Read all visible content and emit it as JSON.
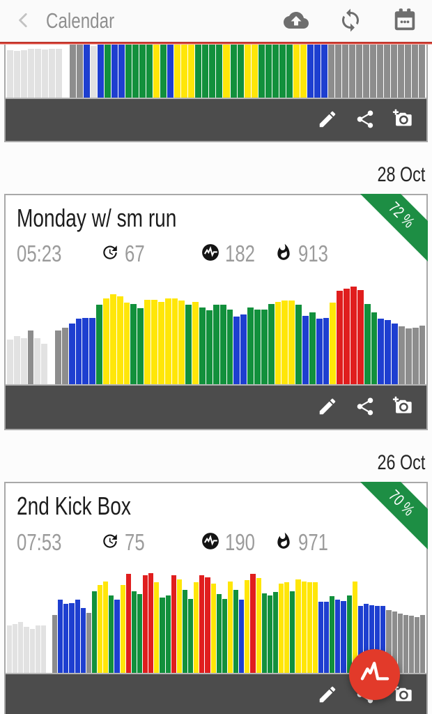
{
  "header": {
    "title": "Calendar",
    "back_icon": "chevron-left",
    "actions": [
      {
        "icon": "cloud-upload"
      },
      {
        "icon": "sync"
      },
      {
        "icon": "calendar"
      }
    ]
  },
  "palette": {
    "L": "#e2e2e2",
    "M": "#8d8d8d",
    "B": "#1e3fd0",
    "G": "#12903c",
    "Y": "#ffe608",
    "R": "#e01e1e",
    "X": "transparent"
  },
  "colors": {
    "header_divider_red": "#d9453a",
    "card_border": "#a8a8a8",
    "footer_bar": "#4c4c4c",
    "ribbon_green": "#1d8e44",
    "fab_red": "#e23a2a",
    "date_text": "#242424",
    "muted_text": "#9b9b9b"
  },
  "footer_actions": [
    {
      "icon": "edit-pencil"
    },
    {
      "icon": "share"
    },
    {
      "icon": "camera-add"
    }
  ],
  "fab": {
    "icon": "heart-rate-pulse"
  },
  "cards": [
    {
      "kind": "partial-workout-card"
    },
    {
      "date": "28 Oct",
      "title": "Monday w/ sm run",
      "duration": "05:23",
      "recovery": "67",
      "heart_rate": "182",
      "calories": "913",
      "score": "72 %"
    },
    {
      "date": "26 Oct",
      "title": "2nd Kick Box",
      "duration": "07:53",
      "recovery": "75",
      "heart_rate": "190",
      "calories": "971",
      "score": "70 %"
    }
  ],
  "chart_data": [
    {
      "type": "bar",
      "title": "heart-rate zone distribution (top card, clipped)",
      "legend": {
        "L": "pre-activity light gray",
        "M": "warm-up gray",
        "B": "zone-1 blue",
        "G": "zone-2 green",
        "Y": "zone-3 yellow",
        "R": "zone-4 red",
        "X": "gap"
      },
      "ylim": [
        0,
        1
      ],
      "bars": [
        [
          "L",
          0.9
        ],
        [
          "L",
          0.88
        ],
        [
          "L",
          0.89
        ],
        [
          "L",
          0.92
        ],
        [
          "L",
          0.92
        ],
        [
          "L",
          0.91
        ],
        [
          "L",
          0.92
        ],
        [
          "L",
          0.92
        ],
        [
          "X",
          0
        ],
        [
          "M",
          1.04
        ],
        [
          "M",
          1.04
        ],
        [
          "B",
          1.04
        ],
        [
          "L",
          0.97
        ],
        [
          "B",
          1.04
        ],
        [
          "G",
          1.04
        ],
        [
          "B",
          1.04
        ],
        [
          "B",
          1.04
        ],
        [
          "G",
          1.04
        ],
        [
          "G",
          1.04
        ],
        [
          "G",
          1.04
        ],
        [
          "G",
          1.04
        ],
        [
          "Y",
          1.04
        ],
        [
          "G",
          1.04
        ],
        [
          "B",
          1.04
        ],
        [
          "Y",
          1.04
        ],
        [
          "Y",
          1.04
        ],
        [
          "Y",
          1.04
        ],
        [
          "G",
          1.04
        ],
        [
          "G",
          1.04
        ],
        [
          "G",
          1.04
        ],
        [
          "G",
          1.04
        ],
        [
          "Y",
          1.04
        ],
        [
          "G",
          1.04
        ],
        [
          "G",
          1.04
        ],
        [
          "Y",
          1.04
        ],
        [
          "Y",
          1.04
        ],
        [
          "G",
          1.04
        ],
        [
          "G",
          1.04
        ],
        [
          "G",
          1.04
        ],
        [
          "G",
          1.04
        ],
        [
          "G",
          1.04
        ],
        [
          "Y",
          1.04
        ],
        [
          "Y",
          1.04
        ],
        [
          "B",
          1.04
        ],
        [
          "B",
          1.04
        ],
        [
          "B",
          1.04
        ],
        [
          "M",
          1.04
        ],
        [
          "M",
          1.04
        ],
        [
          "M",
          1.04
        ],
        [
          "M",
          1.04
        ],
        [
          "M",
          1.04
        ],
        [
          "M",
          1.04
        ],
        [
          "M",
          1.04
        ],
        [
          "M",
          1.04
        ],
        [
          "M",
          1.04
        ],
        [
          "M",
          1.04
        ],
        [
          "M",
          1.04
        ],
        [
          "M",
          1.04
        ],
        [
          "M",
          1.04
        ],
        [
          "M",
          1.04
        ]
      ]
    },
    {
      "type": "bar",
      "title": "heart-rate zone distribution — Monday w/ sm run",
      "legend": {
        "L": "pre-activity light gray",
        "M": "warm-up gray",
        "B": "zone-1 blue",
        "G": "zone-2 green",
        "Y": "zone-3 yellow",
        "R": "zone-4 red",
        "X": "gap"
      },
      "ylim": [
        0,
        1
      ],
      "bars": [
        [
          "L",
          0.42
        ],
        [
          "L",
          0.45
        ],
        [
          "L",
          0.43
        ],
        [
          "M",
          0.5
        ],
        [
          "L",
          0.43
        ],
        [
          "L",
          0.38
        ],
        [
          "X",
          0
        ],
        [
          "M",
          0.5
        ],
        [
          "M",
          0.53
        ],
        [
          "B",
          0.57
        ],
        [
          "B",
          0.61
        ],
        [
          "B",
          0.62
        ],
        [
          "B",
          0.62
        ],
        [
          "G",
          0.74
        ],
        [
          "Y",
          0.8
        ],
        [
          "Y",
          0.84
        ],
        [
          "Y",
          0.82
        ],
        [
          "Y",
          0.76
        ],
        [
          "G",
          0.75
        ],
        [
          "G",
          0.71
        ],
        [
          "Y",
          0.79
        ],
        [
          "Y",
          0.79
        ],
        [
          "Y",
          0.77
        ],
        [
          "Y",
          0.8
        ],
        [
          "Y",
          0.8
        ],
        [
          "Y",
          0.78
        ],
        [
          "G",
          0.74
        ],
        [
          "Y",
          0.77
        ],
        [
          "G",
          0.72
        ],
        [
          "G",
          0.69
        ],
        [
          "G",
          0.74
        ],
        [
          "G",
          0.74
        ],
        [
          "G",
          0.7
        ],
        [
          "B",
          0.63
        ],
        [
          "B",
          0.65
        ],
        [
          "G",
          0.72
        ],
        [
          "G",
          0.7
        ],
        [
          "G",
          0.7
        ],
        [
          "G",
          0.75
        ],
        [
          "Y",
          0.77
        ],
        [
          "Y",
          0.78
        ],
        [
          "Y",
          0.78
        ],
        [
          "G",
          0.74
        ],
        [
          "B",
          0.64
        ],
        [
          "G",
          0.67
        ],
        [
          "B",
          0.61
        ],
        [
          "B",
          0.62
        ],
        [
          "Y",
          0.76
        ],
        [
          "R",
          0.87
        ],
        [
          "R",
          0.89
        ],
        [
          "R",
          0.91
        ],
        [
          "R",
          0.88
        ],
        [
          "G",
          0.75
        ],
        [
          "G",
          0.67
        ],
        [
          "B",
          0.61
        ],
        [
          "B",
          0.6
        ],
        [
          "B",
          0.57
        ],
        [
          "M",
          0.54
        ],
        [
          "M",
          0.52
        ],
        [
          "M",
          0.53
        ],
        [
          "M",
          0.55
        ]
      ]
    },
    {
      "type": "bar",
      "title": "heart-rate zone distribution — 2nd Kick Box",
      "legend": {
        "L": "pre-activity light gray",
        "M": "warm-up gray",
        "B": "zone-1 blue",
        "G": "zone-2 green",
        "Y": "zone-3 yellow",
        "R": "zone-4 red",
        "X": "gap"
      },
      "ylim": [
        0,
        1
      ],
      "bars": [
        [
          "L",
          0.44
        ],
        [
          "L",
          0.45
        ],
        [
          "L",
          0.47
        ],
        [
          "L",
          0.43
        ],
        [
          "L",
          0.41
        ],
        [
          "L",
          0.44
        ],
        [
          "L",
          0.44
        ],
        [
          "X",
          0
        ],
        [
          "M",
          0.54
        ],
        [
          "B",
          0.68
        ],
        [
          "B",
          0.64
        ],
        [
          "B",
          0.65
        ],
        [
          "B",
          0.68
        ],
        [
          "B",
          0.6
        ],
        [
          "M",
          0.56
        ],
        [
          "G",
          0.76
        ],
        [
          "Y",
          0.82
        ],
        [
          "Y",
          0.85
        ],
        [
          "G",
          0.72
        ],
        [
          "B",
          0.68
        ],
        [
          "Y",
          0.82
        ],
        [
          "R",
          0.92
        ],
        [
          "G",
          0.76
        ],
        [
          "G",
          0.73
        ],
        [
          "R",
          0.91
        ],
        [
          "R",
          0.93
        ],
        [
          "Y",
          0.84
        ],
        [
          "G",
          0.7
        ],
        [
          "G",
          0.72
        ],
        [
          "R",
          0.91
        ],
        [
          "Y",
          0.87
        ],
        [
          "G",
          0.77
        ],
        [
          "G",
          0.69
        ],
        [
          "Y",
          0.84
        ],
        [
          "R",
          0.91
        ],
        [
          "R",
          0.89
        ],
        [
          "Y",
          0.83
        ],
        [
          "G",
          0.73
        ],
        [
          "G",
          0.69
        ],
        [
          "Y",
          0.85
        ],
        [
          "G",
          0.77
        ],
        [
          "B",
          0.68
        ],
        [
          "Y",
          0.86
        ],
        [
          "R",
          0.92
        ],
        [
          "Y",
          0.88
        ],
        [
          "G",
          0.74
        ],
        [
          "G",
          0.72
        ],
        [
          "G",
          0.75
        ],
        [
          "Y",
          0.83
        ],
        [
          "Y",
          0.84
        ],
        [
          "G",
          0.76
        ],
        [
          "Y",
          0.87
        ],
        [
          "Y",
          0.85
        ],
        [
          "Y",
          0.84
        ],
        [
          "Y",
          0.84
        ],
        [
          "B",
          0.66
        ],
        [
          "B",
          0.66
        ],
        [
          "G",
          0.71
        ],
        [
          "B",
          0.68
        ],
        [
          "B",
          0.67
        ],
        [
          "G",
          0.72
        ],
        [
          "Y",
          0.85
        ],
        [
          "B",
          0.62
        ],
        [
          "B",
          0.64
        ],
        [
          "B",
          0.63
        ],
        [
          "B",
          0.62
        ],
        [
          "B",
          0.62
        ],
        [
          "M",
          0.58
        ],
        [
          "M",
          0.57
        ],
        [
          "M",
          0.55
        ],
        [
          "M",
          0.54
        ],
        [
          "M",
          0.53
        ],
        [
          "M",
          0.52
        ],
        [
          "M",
          0.54
        ]
      ]
    }
  ]
}
